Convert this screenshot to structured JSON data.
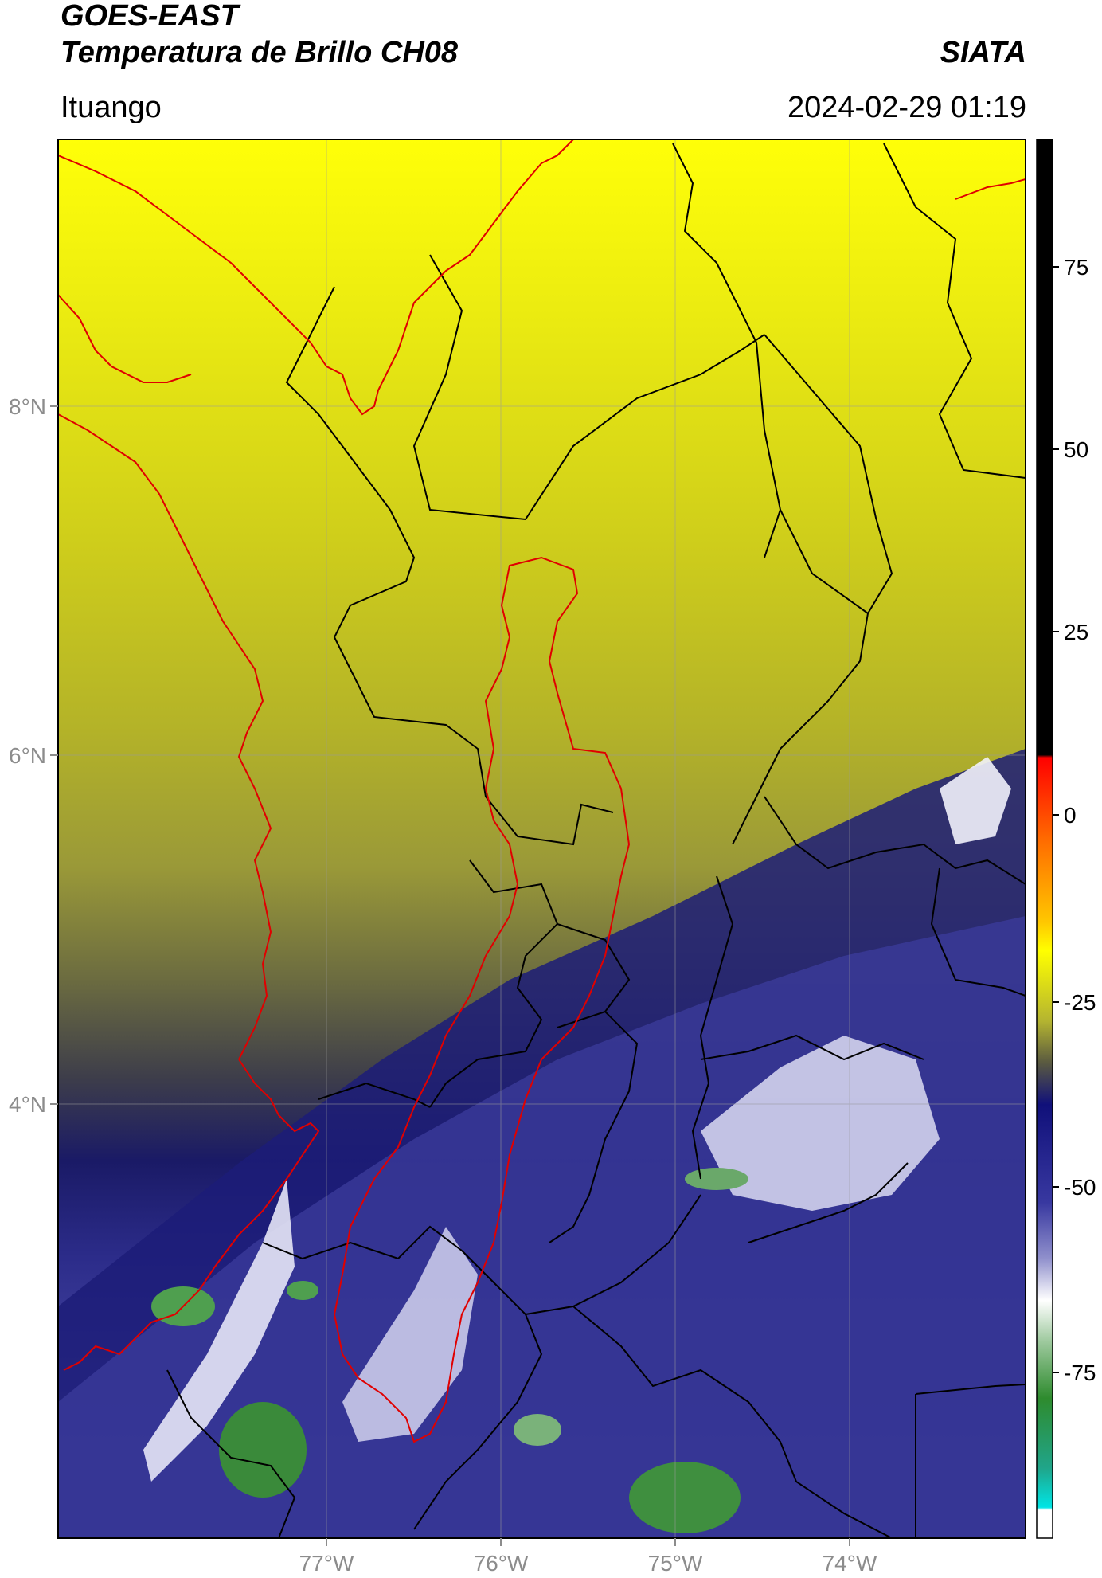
{
  "header": {
    "satellite": "GOES-EAST",
    "product": "Temperatura de Brillo CH08",
    "brand": "SIATA",
    "region": "Ituango",
    "timestamp": "2024-02-29 01:19"
  },
  "map": {
    "lat_labels": [
      "8°N",
      "6°N",
      "4°N"
    ],
    "lon_labels": [
      "77°W",
      "76°W",
      "75°W",
      "74°W"
    ]
  },
  "colorbar": {
    "ticks": [
      "75",
      "50",
      "25",
      "0",
      "-25",
      "-50",
      "-75"
    ],
    "range": [
      -92,
      92
    ],
    "colors": {
      "warm": "#000000",
      "red": "#ff0000",
      "orange": "#ff8c00",
      "yellow": "#ffff00",
      "olive": "#6b6b3a",
      "navy": "#0c0c6e",
      "lavender": "#8a8ac8",
      "white": "#ffffff",
      "green": "#2e8b2e",
      "cyan": "#00e5e5"
    }
  },
  "legend_colors": {
    "coastline": "#e00000",
    "boundaries": "#000000",
    "basin": "#e00000"
  }
}
